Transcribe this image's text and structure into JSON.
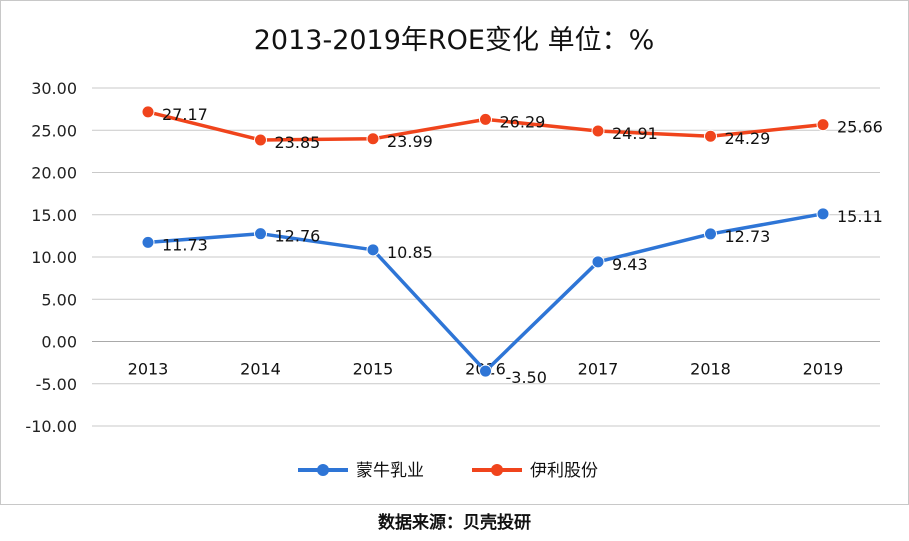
{
  "chart_data": {
    "type": "line",
    "title": "2013-2019年ROE变化 单位：%",
    "categories": [
      "2013",
      "2014",
      "2015",
      "2016",
      "2017",
      "2018",
      "2019"
    ],
    "ylim": [
      -10,
      30
    ],
    "yticks": [
      "30.00",
      "25.00",
      "20.00",
      "15.00",
      "10.00",
      "5.00",
      "0.00",
      "-5.00",
      "-10.00"
    ],
    "grid": true,
    "legend_position": "bottom",
    "series": [
      {
        "name": "蒙牛乳业",
        "color": "#2e75d6",
        "values": [
          11.73,
          12.76,
          10.85,
          -3.5,
          9.43,
          12.73,
          15.11
        ],
        "labels": [
          "11.73",
          "12.76",
          "10.85",
          "-3.50",
          "9.43",
          "12.73",
          "15.11"
        ]
      },
      {
        "name": "伊利股份",
        "color": "#f0441c",
        "values": [
          27.17,
          23.85,
          23.99,
          26.29,
          24.91,
          24.29,
          25.66
        ],
        "labels": [
          "27.17",
          "23.85",
          "23.99",
          "26.29",
          "24.91",
          "24.29",
          "25.66"
        ]
      }
    ]
  },
  "source_note": "数据来源：贝壳投研"
}
